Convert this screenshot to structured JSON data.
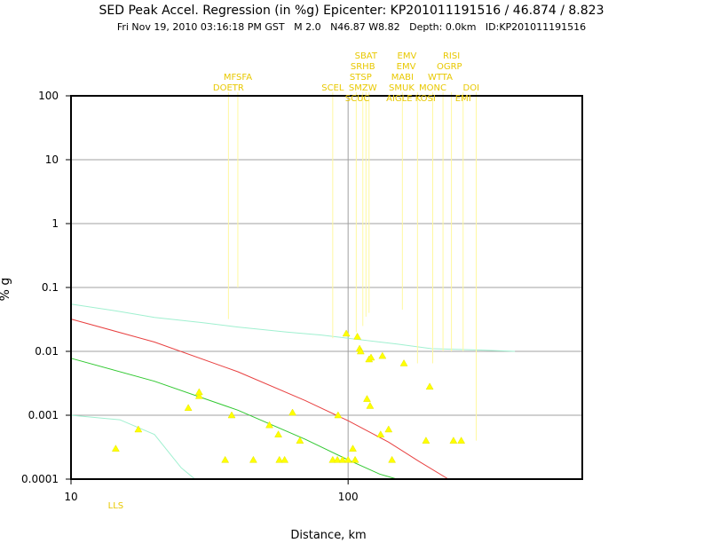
{
  "chart_data": {
    "type": "scatter",
    "title": "SED Peak Accel. Regression (in %g) Epicenter: KP201011191516 / 46.874 / 8.823",
    "subtitle": "Fri Nov 19, 2010 03:16:18 PM GST   M 2.0   N46.87 W8.82   Depth: 0.0km   ID:KP201011191516",
    "xlabel": "Distance, km",
    "ylabel": "% g",
    "xscale": "log",
    "yscale": "log",
    "xlim": [
      10,
      700
    ],
    "ylim": [
      0.0001,
      100
    ],
    "x_ticks": [
      {
        "value": 10,
        "label": "10"
      },
      {
        "value": 100,
        "label": "100"
      }
    ],
    "y_ticks": [
      {
        "value": 100,
        "label": "100"
      },
      {
        "value": 10,
        "label": "10"
      },
      {
        "value": 1,
        "label": "1"
      },
      {
        "value": 0.1,
        "label": "0.1"
      },
      {
        "value": 0.01,
        "label": "0.01"
      },
      {
        "value": 0.001,
        "label": "0.001"
      },
      {
        "value": 0.0001,
        "label": "0.0001"
      }
    ],
    "grid": true,
    "colors": {
      "observed": "#ffff00",
      "regression_mean": "#e84040",
      "regression_minus_sigma": "#30c830",
      "regression_cyan": "#a0f0d0",
      "station_labels": "#e8c800",
      "frame": "#000000",
      "gridline": "#a0a0a0"
    },
    "curves": [
      {
        "color_key": "regression_mean",
        "points": [
          [
            10,
            0.032
          ],
          [
            20,
            0.014
          ],
          [
            40,
            0.0048
          ],
          [
            70,
            0.0017
          ],
          [
            100,
            0.00082
          ],
          [
            140,
            0.00038
          ],
          [
            180,
            0.00019
          ],
          [
            230,
            0.0001
          ]
        ]
      },
      {
        "color_key": "regression_minus_sigma",
        "points": [
          [
            10,
            0.0078
          ],
          [
            20,
            0.0034
          ],
          [
            40,
            0.0012
          ],
          [
            70,
            0.00042
          ],
          [
            100,
            0.0002
          ],
          [
            130,
            0.00012
          ],
          [
            150,
            0.0001
          ]
        ]
      },
      {
        "color_key": "regression_cyan",
        "points": [
          [
            10,
            0.055
          ],
          [
            15,
            0.042
          ],
          [
            20,
            0.034
          ],
          [
            30,
            0.028
          ],
          [
            40,
            0.024
          ],
          [
            60,
            0.02
          ],
          [
            80,
            0.018
          ],
          [
            100,
            0.016
          ],
          [
            150,
            0.013
          ],
          [
            200,
            0.011
          ],
          [
            300,
            0.0105
          ],
          [
            400,
            0.01
          ]
        ]
      },
      {
        "color_key": "regression_cyan",
        "points": [
          [
            10,
            0.001
          ],
          [
            15,
            0.00085
          ],
          [
            20,
            0.0005
          ],
          [
            25,
            0.00015
          ],
          [
            28,
            0.0001
          ]
        ]
      }
    ],
    "points": [
      {
        "x": 14.5,
        "y": 0.0003
      },
      {
        "x": 17.5,
        "y": 0.0006
      },
      {
        "x": 26.5,
        "y": 0.0013
      },
      {
        "x": 29,
        "y": 0.002
      },
      {
        "x": 29,
        "y": 0.0023
      },
      {
        "x": 36,
        "y": 0.0002
      },
      {
        "x": 38,
        "y": 0.001
      },
      {
        "x": 45.5,
        "y": 0.0002
      },
      {
        "x": 52,
        "y": 0.0007
      },
      {
        "x": 56,
        "y": 0.0005
      },
      {
        "x": 56.5,
        "y": 0.0002
      },
      {
        "x": 59,
        "y": 0.0002
      },
      {
        "x": 63,
        "y": 0.0011
      },
      {
        "x": 67,
        "y": 0.0004
      },
      {
        "x": 88,
        "y": 0.0002
      },
      {
        "x": 91.5,
        "y": 0.0002
      },
      {
        "x": 92,
        "y": 0.001
      },
      {
        "x": 95.5,
        "y": 0.0002
      },
      {
        "x": 98.5,
        "y": 0.019
      },
      {
        "x": 100,
        "y": 0.0002
      },
      {
        "x": 104,
        "y": 0.0003
      },
      {
        "x": 106,
        "y": 0.0002
      },
      {
        "x": 108,
        "y": 0.017
      },
      {
        "x": 110,
        "y": 0.011
      },
      {
        "x": 111,
        "y": 0.01
      },
      {
        "x": 117,
        "y": 0.0018
      },
      {
        "x": 119,
        "y": 0.0075
      },
      {
        "x": 120,
        "y": 0.0014
      },
      {
        "x": 121,
        "y": 0.008
      },
      {
        "x": 131,
        "y": 0.0005
      },
      {
        "x": 133,
        "y": 0.0085
      },
      {
        "x": 140,
        "y": 0.0006
      },
      {
        "x": 144,
        "y": 0.0002
      },
      {
        "x": 159,
        "y": 0.0065
      },
      {
        "x": 191,
        "y": 0.0004
      },
      {
        "x": 197,
        "y": 0.0028
      },
      {
        "x": 240,
        "y": 0.0004
      },
      {
        "x": 256,
        "y": 0.0004
      }
    ],
    "station_lines": [
      {
        "x": 37,
        "y_bottom": 0.032
      },
      {
        "x": 40,
        "y_bottom": 0.1
      },
      {
        "x": 88,
        "y_bottom": 0.016
      },
      {
        "x": 107,
        "y_bottom": 0.02
      },
      {
        "x": 113,
        "y_bottom": 0.025
      },
      {
        "x": 116,
        "y_bottom": 0.035
      },
      {
        "x": 119,
        "y_bottom": 0.04
      },
      {
        "x": 157,
        "y_bottom": 0.045
      },
      {
        "x": 178,
        "y_bottom": 0.0065
      },
      {
        "x": 202,
        "y_bottom": 0.0065
      },
      {
        "x": 220,
        "y_bottom": 0.01
      },
      {
        "x": 236,
        "y_bottom": 0.01
      },
      {
        "x": 260,
        "y_bottom": 0.01
      },
      {
        "x": 290,
        "y_bottom": 0.0004
      }
    ],
    "station_labels": [
      {
        "text": "MFSFA",
        "x": 40,
        "row": 0
      },
      {
        "text": "DOETR",
        "x": 37,
        "row": 1
      },
      {
        "text": "SBAT",
        "x": 116,
        "row": -2
      },
      {
        "text": "SRHB",
        "x": 113,
        "row": -1
      },
      {
        "text": "STSP",
        "x": 111,
        "row": 0
      },
      {
        "text": "SMZW",
        "x": 113,
        "row": 1
      },
      {
        "text": "SCEL",
        "x": 88,
        "row": 1
      },
      {
        "text": "SCUC",
        "x": 108,
        "row": 2
      },
      {
        "text": "EMV",
        "x": 163,
        "row": -2
      },
      {
        "text": "MABI",
        "x": 157,
        "row": 0
      },
      {
        "text": "EMV",
        "x": 162,
        "row": -1
      },
      {
        "text": "SMUK",
        "x": 156,
        "row": 1
      },
      {
        "text": "AIGLE",
        "x": 153,
        "row": 2
      },
      {
        "text": "RISI",
        "x": 236,
        "row": -2
      },
      {
        "text": "OGRP",
        "x": 232,
        "row": -1
      },
      {
        "text": "WTTA",
        "x": 215,
        "row": 0
      },
      {
        "text": "MONC",
        "x": 202,
        "row": 1
      },
      {
        "text": "KOSI",
        "x": 190,
        "row": 2
      },
      {
        "text": "DOI",
        "x": 278,
        "row": 1
      },
      {
        "text": "EMI",
        "x": 260,
        "row": 2
      },
      {
        "text": "LLS",
        "x": 14.5,
        "row": "bottom"
      }
    ]
  }
}
